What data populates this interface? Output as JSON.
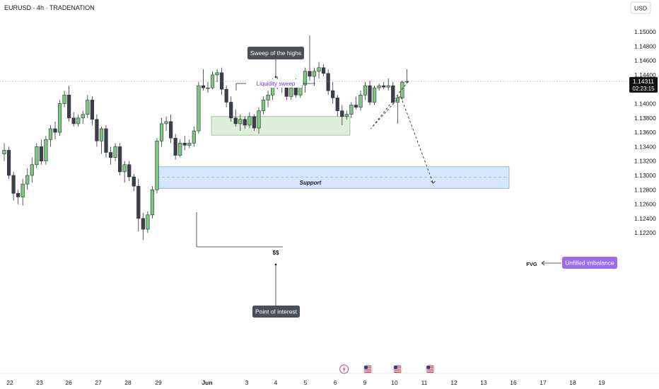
{
  "header": {
    "symbol_title": "EURUSD · 4h · TRADENATION",
    "currency": "USD"
  },
  "chart_data": {
    "type": "candlestick",
    "symbol": "EURUSD",
    "timeframe": "4h",
    "broker": "TRADENATION",
    "y_axis": {
      "ticks": [
        1.15,
        1.148,
        1.146,
        1.144,
        1.142,
        1.14,
        1.138,
        1.136,
        1.134,
        1.132,
        1.13,
        1.128,
        1.126,
        1.124,
        1.122
      ],
      "tick_labels": [
        "1.15000",
        "1.14800",
        "1.14600",
        "1.14400",
        "1.14200",
        "1.14000",
        "1.13800",
        "1.13600",
        "1.13400",
        "1.13200",
        "1.13000",
        "1.12800",
        "1.12600",
        "1.12400",
        "1.12200"
      ],
      "ylim": [
        1.1208,
        1.1511
      ]
    },
    "x_axis": {
      "tick_labels": [
        "22",
        "23",
        "26",
        "27",
        "28",
        "29",
        "Jun",
        "3",
        "4",
        "5",
        "6",
        "9",
        "10",
        "11",
        "12",
        "13",
        "16",
        "17",
        "18",
        "19"
      ],
      "bold_labels": [
        "Jun"
      ]
    },
    "last_price": {
      "value": 1.14311,
      "label": "1.14311",
      "countdown": "02:23:15"
    },
    "candles": [
      {
        "o": 1.133,
        "h": 1.1345,
        "l": 1.132,
        "c": 1.1335
      },
      {
        "o": 1.1335,
        "h": 1.134,
        "l": 1.1295,
        "c": 1.13
      },
      {
        "o": 1.13,
        "h": 1.1305,
        "l": 1.1265,
        "c": 1.1275
      },
      {
        "o": 1.1275,
        "h": 1.128,
        "l": 1.126,
        "c": 1.127
      },
      {
        "o": 1.127,
        "h": 1.1295,
        "l": 1.1258,
        "c": 1.1288
      },
      {
        "o": 1.1288,
        "h": 1.131,
        "l": 1.128,
        "c": 1.13
      },
      {
        "o": 1.13,
        "h": 1.1325,
        "l": 1.129,
        "c": 1.1315
      },
      {
        "o": 1.1315,
        "h": 1.1345,
        "l": 1.131,
        "c": 1.134
      },
      {
        "o": 1.134,
        "h": 1.135,
        "l": 1.1315,
        "c": 1.132
      },
      {
        "o": 1.132,
        "h": 1.1355,
        "l": 1.1315,
        "c": 1.135
      },
      {
        "o": 1.135,
        "h": 1.137,
        "l": 1.134,
        "c": 1.1365
      },
      {
        "o": 1.1365,
        "h": 1.1375,
        "l": 1.135,
        "c": 1.136
      },
      {
        "o": 1.136,
        "h": 1.1405,
        "l": 1.1355,
        "c": 1.14
      },
      {
        "o": 1.14,
        "h": 1.1418,
        "l": 1.1395,
        "c": 1.1412
      },
      {
        "o": 1.1412,
        "h": 1.1425,
        "l": 1.1375,
        "c": 1.138
      },
      {
        "o": 1.138,
        "h": 1.1388,
        "l": 1.1368,
        "c": 1.1372
      },
      {
        "o": 1.1372,
        "h": 1.1385,
        "l": 1.1368,
        "c": 1.138
      },
      {
        "o": 1.138,
        "h": 1.139,
        "l": 1.1372,
        "c": 1.1385
      },
      {
        "o": 1.1385,
        "h": 1.1412,
        "l": 1.138,
        "c": 1.1405
      },
      {
        "o": 1.1405,
        "h": 1.141,
        "l": 1.137,
        "c": 1.1378
      },
      {
        "o": 1.1378,
        "h": 1.1385,
        "l": 1.134,
        "c": 1.1348
      },
      {
        "o": 1.1348,
        "h": 1.1368,
        "l": 1.133,
        "c": 1.1365
      },
      {
        "o": 1.1365,
        "h": 1.137,
        "l": 1.1325,
        "c": 1.1332
      },
      {
        "o": 1.1332,
        "h": 1.134,
        "l": 1.1315,
        "c": 1.1325
      },
      {
        "o": 1.1325,
        "h": 1.1345,
        "l": 1.132,
        "c": 1.134
      },
      {
        "o": 1.134,
        "h": 1.1345,
        "l": 1.13,
        "c": 1.1305
      },
      {
        "o": 1.1305,
        "h": 1.132,
        "l": 1.129,
        "c": 1.1315
      },
      {
        "o": 1.1315,
        "h": 1.132,
        "l": 1.1292,
        "c": 1.1298
      },
      {
        "o": 1.1298,
        "h": 1.1302,
        "l": 1.1278,
        "c": 1.1285
      },
      {
        "o": 1.1285,
        "h": 1.1295,
        "l": 1.1222,
        "c": 1.124
      },
      {
        "o": 1.124,
        "h": 1.1248,
        "l": 1.121,
        "c": 1.1225
      },
      {
        "o": 1.1225,
        "h": 1.125,
        "l": 1.122,
        "c": 1.1245
      },
      {
        "o": 1.1245,
        "h": 1.1285,
        "l": 1.124,
        "c": 1.128
      },
      {
        "o": 1.128,
        "h": 1.1352,
        "l": 1.1275,
        "c": 1.1348
      },
      {
        "o": 1.1348,
        "h": 1.138,
        "l": 1.134,
        "c": 1.1372
      },
      {
        "o": 1.1372,
        "h": 1.1382,
        "l": 1.1362,
        "c": 1.1375
      },
      {
        "o": 1.1375,
        "h": 1.1385,
        "l": 1.1345,
        "c": 1.1352
      },
      {
        "o": 1.1352,
        "h": 1.1358,
        "l": 1.1322,
        "c": 1.1328
      },
      {
        "o": 1.1328,
        "h": 1.135,
        "l": 1.1325,
        "c": 1.1345
      },
      {
        "o": 1.1345,
        "h": 1.1355,
        "l": 1.1335,
        "c": 1.1342
      },
      {
        "o": 1.1342,
        "h": 1.135,
        "l": 1.1338,
        "c": 1.1345
      },
      {
        "o": 1.1345,
        "h": 1.1368,
        "l": 1.134,
        "c": 1.1362
      },
      {
        "o": 1.1362,
        "h": 1.143,
        "l": 1.1358,
        "c": 1.1425
      },
      {
        "o": 1.1425,
        "h": 1.1448,
        "l": 1.1418,
        "c": 1.1422
      },
      {
        "o": 1.1422,
        "h": 1.143,
        "l": 1.1415,
        "c": 1.1422
      },
      {
        "o": 1.1422,
        "h": 1.1445,
        "l": 1.142,
        "c": 1.144
      },
      {
        "o": 1.144,
        "h": 1.1448,
        "l": 1.143,
        "c": 1.1443
      },
      {
        "o": 1.1443,
        "h": 1.145,
        "l": 1.1412,
        "c": 1.142
      },
      {
        "o": 1.142,
        "h": 1.1425,
        "l": 1.1395,
        "c": 1.1402
      },
      {
        "o": 1.1402,
        "h": 1.141,
        "l": 1.1375,
        "c": 1.138
      },
      {
        "o": 1.138,
        "h": 1.1392,
        "l": 1.1368,
        "c": 1.1372
      },
      {
        "o": 1.1372,
        "h": 1.1385,
        "l": 1.1362,
        "c": 1.1378
      },
      {
        "o": 1.1378,
        "h": 1.1382,
        "l": 1.1365,
        "c": 1.137
      },
      {
        "o": 1.137,
        "h": 1.1388,
        "l": 1.1366,
        "c": 1.1382
      },
      {
        "o": 1.1382,
        "h": 1.1385,
        "l": 1.1362,
        "c": 1.1366
      },
      {
        "o": 1.1366,
        "h": 1.1395,
        "l": 1.1358,
        "c": 1.139
      },
      {
        "o": 1.139,
        "h": 1.141,
        "l": 1.1385,
        "c": 1.1405
      },
      {
        "o": 1.1405,
        "h": 1.1418,
        "l": 1.1395,
        "c": 1.1412
      },
      {
        "o": 1.1412,
        "h": 1.1435,
        "l": 1.1405,
        "c": 1.1432
      },
      {
        "o": 1.1432,
        "h": 1.1438,
        "l": 1.142,
        "c": 1.1425
      },
      {
        "o": 1.1425,
        "h": 1.1432,
        "l": 1.1415,
        "c": 1.1428
      },
      {
        "o": 1.1428,
        "h": 1.1432,
        "l": 1.1405,
        "c": 1.141
      },
      {
        "o": 1.141,
        "h": 1.1428,
        "l": 1.1405,
        "c": 1.1422
      },
      {
        "o": 1.1422,
        "h": 1.1435,
        "l": 1.1408,
        "c": 1.1412
      },
      {
        "o": 1.1412,
        "h": 1.143,
        "l": 1.1408,
        "c": 1.1426
      },
      {
        "o": 1.1426,
        "h": 1.145,
        "l": 1.1415,
        "c": 1.1445
      },
      {
        "o": 1.1445,
        "h": 1.1495,
        "l": 1.1432,
        "c": 1.1438
      },
      {
        "o": 1.1438,
        "h": 1.145,
        "l": 1.1425,
        "c": 1.1445
      },
      {
        "o": 1.1445,
        "h": 1.1458,
        "l": 1.1435,
        "c": 1.145
      },
      {
        "o": 1.145,
        "h": 1.1455,
        "l": 1.1438,
        "c": 1.1442
      },
      {
        "o": 1.1442,
        "h": 1.1448,
        "l": 1.1412,
        "c": 1.1418
      },
      {
        "o": 1.1418,
        "h": 1.143,
        "l": 1.14,
        "c": 1.1408
      },
      {
        "o": 1.1408,
        "h": 1.1412,
        "l": 1.1382,
        "c": 1.139
      },
      {
        "o": 1.139,
        "h": 1.1398,
        "l": 1.137,
        "c": 1.1382
      },
      {
        "o": 1.1382,
        "h": 1.139,
        "l": 1.1378,
        "c": 1.1385
      },
      {
        "o": 1.1385,
        "h": 1.1402,
        "l": 1.138,
        "c": 1.1398
      },
      {
        "o": 1.1398,
        "h": 1.141,
        "l": 1.1392,
        "c": 1.1395
      },
      {
        "o": 1.1395,
        "h": 1.1418,
        "l": 1.139,
        "c": 1.1412
      },
      {
        "o": 1.1412,
        "h": 1.143,
        "l": 1.1405,
        "c": 1.1425
      },
      {
        "o": 1.1425,
        "h": 1.1432,
        "l": 1.1398,
        "c": 1.1402
      },
      {
        "o": 1.1402,
        "h": 1.1425,
        "l": 1.1398,
        "c": 1.1422
      },
      {
        "o": 1.1422,
        "h": 1.1428,
        "l": 1.1418,
        "c": 1.1425
      },
      {
        "o": 1.1425,
        "h": 1.143,
        "l": 1.142,
        "c": 1.1423
      },
      {
        "o": 1.1423,
        "h": 1.1435,
        "l": 1.1418,
        "c": 1.1425
      },
      {
        "o": 1.1425,
        "h": 1.143,
        "l": 1.1398,
        "c": 1.1402
      },
      {
        "o": 1.1402,
        "h": 1.1412,
        "l": 1.1372,
        "c": 1.1408
      },
      {
        "o": 1.1408,
        "h": 1.1432,
        "l": 1.1405,
        "c": 1.143
      },
      {
        "o": 1.143,
        "h": 1.1448,
        "l": 1.1428,
        "c": 1.1431
      }
    ],
    "zones": [
      {
        "name": "support",
        "label": "Support",
        "y_top": 1.1382,
        "y_bottom": 1.1356,
        "start_candle": 35,
        "end_date_position": 11
      },
      {
        "name": "fvg",
        "label": "FVG",
        "y_top": 1.1312,
        "y_bottom": 1.1282,
        "mid": 1.12975,
        "start_candle": 27,
        "end_date_position": 16
      }
    ],
    "projection": [
      {
        "date_position": 10.0,
        "price": 1.14311
      },
      {
        "date_position": 11.2,
        "price": 1.1365
      },
      {
        "date_position": 12.2,
        "price": 1.1411
      },
      {
        "date_position": 13.3,
        "price": 1.1289
      }
    ],
    "annotations": {
      "sweep_of_highs": "Sweep of the highs",
      "liquidity_sweep": "Liquidity sweep",
      "support": "Support",
      "ss": "$$",
      "fvg": "FVG",
      "unfilled_imbalance": "Unfilled imbalance",
      "point_of_interest": "Point of interest"
    },
    "colors": {
      "bull_body": "#7bc87e",
      "bear_body": "#3b3f4a",
      "wick": "#2b2f36",
      "support_fill": "#dff0da",
      "support_border": "#8cc08a",
      "fvg_fill": "#d7e7fb",
      "fvg_border": "#8aa5cf",
      "callout_dark": "#4a4f59",
      "purple": "#9b6cf2",
      "purple_text": "#6a3cd6",
      "price_tag": "#111111"
    },
    "event_icons": [
      {
        "name": "lightning-event-icon",
        "date_position": 10.3
      },
      {
        "name": "us-flag-event-icon",
        "date_position": 11.1
      },
      {
        "name": "us-flag-event-icon",
        "date_position": 12.1
      },
      {
        "name": "us-flag-event-icon",
        "date_position": 13.2
      }
    ]
  }
}
